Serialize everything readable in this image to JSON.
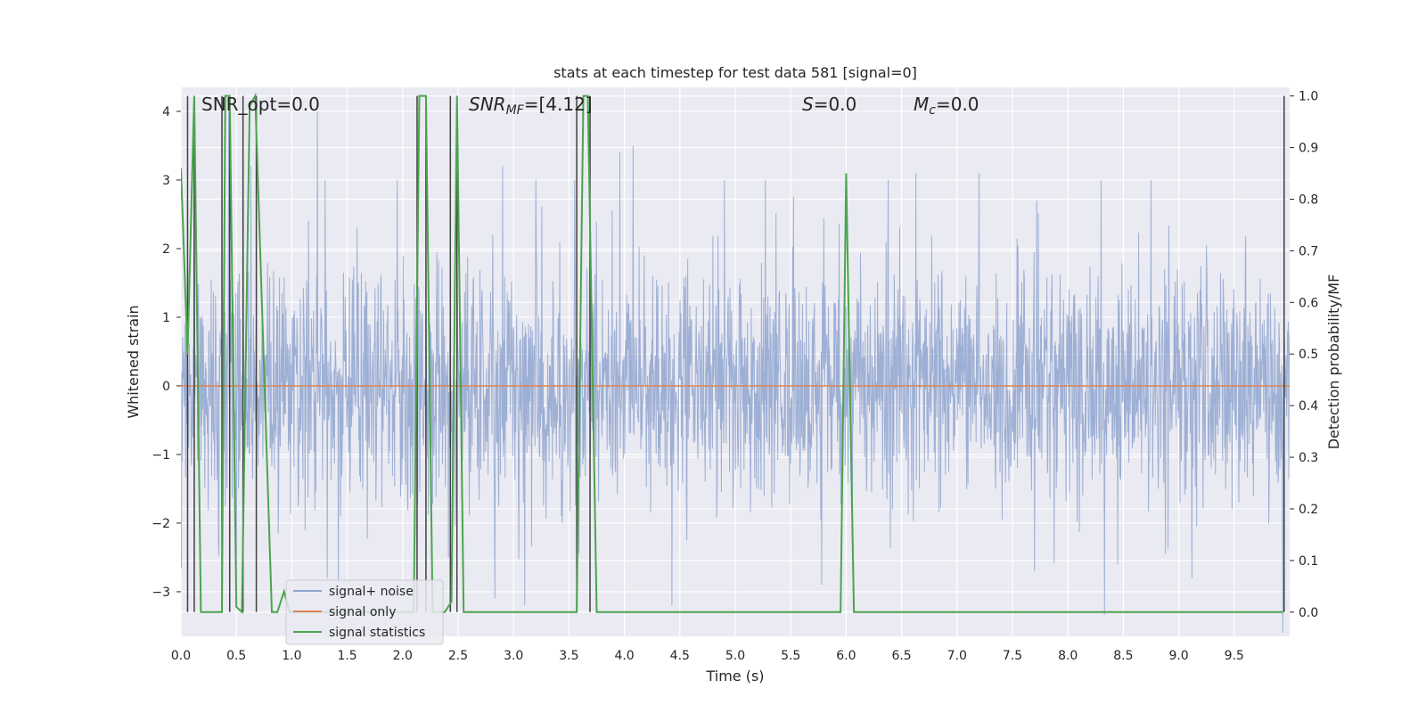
{
  "chart_data": {
    "type": "line",
    "title": "stats at each timestep for test data 581 [signal=0]",
    "xlabel": "Time (s)",
    "ylabel_left": "Whitened strain",
    "ylabel_right": "Detection probability/MF",
    "xlim": [
      0.0,
      10.0
    ],
    "ylim_left": [
      -3.65,
      4.35
    ],
    "ylim_right": [
      -0.047,
      1.0167
    ],
    "x_ticks": [
      "0.0",
      "0.5",
      "1.0",
      "1.5",
      "2.0",
      "2.5",
      "3.0",
      "3.5",
      "4.0",
      "4.5",
      "5.0",
      "5.5",
      "6.0",
      "6.5",
      "7.0",
      "7.5",
      "8.0",
      "8.5",
      "9.0",
      "9.5"
    ],
    "y_ticks_left": [
      "−3",
      "−2",
      "−1",
      "0",
      "1",
      "2",
      "3",
      "4"
    ],
    "y_ticks_right": [
      "0.0",
      "0.1",
      "0.2",
      "0.3",
      "0.4",
      "0.5",
      "0.6",
      "0.7",
      "0.8",
      "0.9",
      "1.0"
    ],
    "grid": true,
    "legend_placement": "lower-left",
    "annotations": {
      "snr_opt": "SNR_opt=0.0",
      "snr_mf_main": "SNR",
      "snr_mf_sub": "MF",
      "snr_mf_value": "=[4.12]",
      "s_main": "S",
      "s_value": "=0.0",
      "mc_main": "M",
      "mc_sub": "c",
      "mc_value": "=0.0"
    },
    "series": [
      {
        "name": "signal+ noise",
        "axis": "left",
        "color": "#8fa5cf",
        "kind": "noise",
        "approx_std": 0.85,
        "approx_range": [
          -3.5,
          4.0
        ],
        "peaks": [
          [
            0.12,
            3.7
          ],
          [
            0.43,
            4.0
          ],
          [
            1.23,
            4.0
          ],
          [
            0.56,
            3.3
          ],
          [
            0.63,
            3.2
          ],
          [
            1.3,
            3.0
          ],
          [
            1.95,
            3.0
          ],
          [
            2.9,
            3.2
          ],
          [
            3.2,
            3.0
          ],
          [
            3.55,
            3.0
          ],
          [
            3.96,
            3.4
          ],
          [
            4.08,
            3.5
          ],
          [
            4.9,
            3.0
          ],
          [
            5.27,
            3.0
          ],
          [
            6.38,
            3.0
          ],
          [
            6.63,
            3.1
          ],
          [
            7.2,
            3.1
          ],
          [
            8.3,
            3.0
          ],
          [
            8.75,
            3.0
          ],
          [
            9.12,
            2.9
          ],
          [
            0.5,
            -3.0
          ],
          [
            1.42,
            -3.1
          ],
          [
            1.32,
            -2.8
          ],
          [
            2.83,
            -3.1
          ],
          [
            3.1,
            -3.2
          ],
          [
            4.43,
            -3.2
          ],
          [
            5.78,
            -2.9
          ],
          [
            7.7,
            -2.7
          ],
          [
            8.45,
            -2.6
          ],
          [
            9.12,
            -2.8
          ],
          [
            9.94,
            -3.6
          ]
        ]
      },
      {
        "name": "signal only",
        "axis": "left",
        "color": "#dd8452",
        "x": [
          0.0,
          10.0
        ],
        "y": [
          0.0,
          0.0
        ]
      },
      {
        "name": "signal statistics",
        "axis": "right",
        "color": "#4ca44e",
        "x": [
          0.0,
          0.06,
          0.12,
          0.18,
          0.37,
          0.4,
          0.44,
          0.5,
          0.55,
          0.62,
          0.67,
          0.82,
          0.87,
          0.93,
          0.98,
          2.1,
          2.15,
          2.21,
          2.27,
          2.38,
          2.44,
          2.49,
          2.55,
          3.57,
          3.63,
          3.67,
          3.75,
          5.95,
          6.0,
          6.07,
          9.94
        ],
        "y": [
          0.86,
          0.5,
          1.0,
          0.0,
          0.0,
          1.0,
          1.0,
          0.01,
          0.0,
          0.98,
          1.0,
          0.0,
          0.0,
          0.04,
          0.0,
          0.0,
          1.0,
          1.0,
          0.0,
          0.0,
          0.02,
          1.0,
          0.0,
          0.0,
          1.0,
          1.0,
          0.0,
          0.0,
          0.85,
          0.0,
          0.0
        ]
      }
    ],
    "vertical_markers": {
      "color": "#404040",
      "axis": "right",
      "y_range": [
        0.0,
        1.0
      ],
      "x": [
        0.06,
        0.12,
        0.37,
        0.44,
        0.56,
        0.68,
        2.13,
        2.21,
        2.43,
        2.49,
        3.57,
        3.69,
        9.95
      ]
    }
  }
}
